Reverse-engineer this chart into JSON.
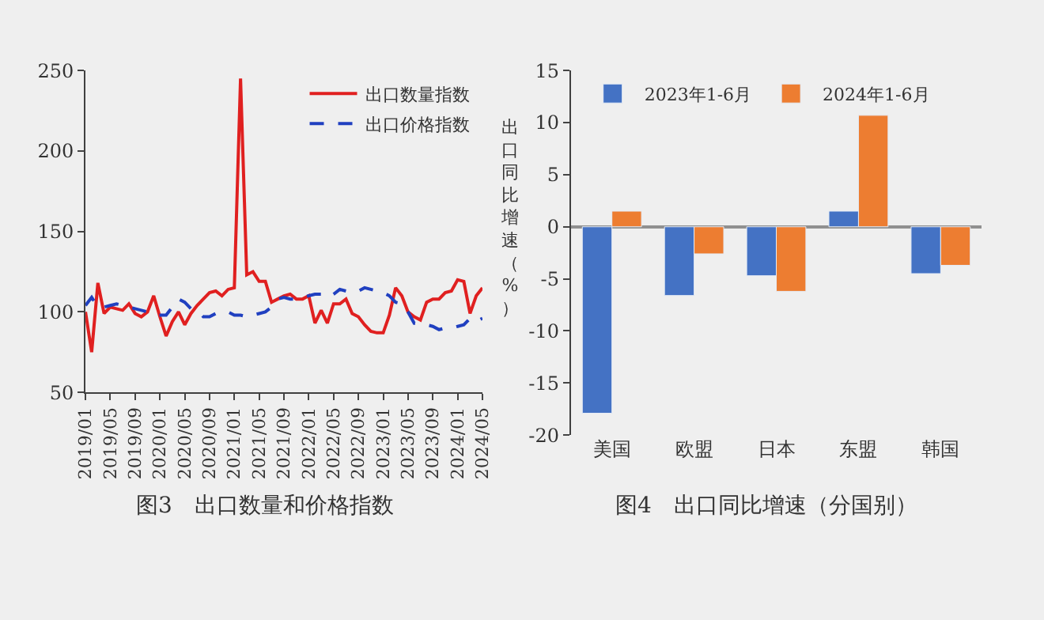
{
  "chart_data": [
    {
      "type": "line",
      "title": "图3　出口数量和价格指数",
      "categories": [
        "2019/01",
        null,
        null,
        null,
        "2019/05",
        null,
        null,
        null,
        "2019/09",
        null,
        null,
        null,
        "2020/01",
        null,
        null,
        null,
        "2020/05",
        null,
        null,
        null,
        "2020/09",
        null,
        null,
        null,
        "2021/01",
        null,
        null,
        null,
        "2021/05",
        null,
        null,
        null,
        "2021/09",
        null,
        null,
        null,
        "2022/01",
        null,
        null,
        null,
        "2022/05",
        null,
        null,
        null,
        "2022/09",
        null,
        null,
        null,
        "2023/01",
        null,
        null,
        null,
        "2023/05",
        null,
        null,
        null,
        "2023/09",
        null,
        null,
        null,
        "2024/01",
        null,
        null,
        null,
        "2024/05"
      ],
      "series": [
        {
          "name": "出口数量指数",
          "color": "#e02020",
          "line_style": "solid",
          "values": [
            100,
            75,
            118,
            99,
            103,
            102,
            101,
            105,
            99,
            97,
            100,
            110,
            97,
            85,
            94,
            100,
            92,
            99,
            104,
            108,
            112,
            113,
            110,
            114,
            115,
            245,
            123,
            125,
            119,
            119,
            106,
            108,
            110,
            111,
            108,
            108,
            110,
            93,
            101,
            93,
            105,
            105,
            108,
            99,
            97,
            92,
            88,
            87,
            87,
            98,
            115,
            110,
            100,
            97,
            95,
            106,
            108,
            108,
            112,
            113,
            120,
            119,
            99,
            110,
            115
          ]
        },
        {
          "name": "出口价格指数",
          "color": "#2040c0",
          "line_style": "dashed",
          "values": [
            104,
            109,
            103,
            103,
            104,
            105,
            104,
            103,
            102,
            101,
            100,
            98,
            98,
            98,
            103,
            108,
            106,
            102,
            101,
            97,
            97,
            99,
            100,
            100,
            98,
            98,
            97,
            98,
            99,
            100,
            103,
            108,
            109,
            108,
            108,
            109,
            110,
            111,
            111,
            109,
            111,
            114,
            113,
            112,
            113,
            115,
            114,
            113,
            112,
            110,
            106,
            105,
            100,
            93,
            93,
            92,
            91,
            89,
            90,
            90,
            91,
            92,
            96,
            94,
            96
          ]
        }
      ],
      "ylim": [
        50,
        250
      ],
      "yticks": [
        50,
        100,
        150,
        200,
        250
      ],
      "legend": "top right"
    },
    {
      "type": "bar",
      "title": "图4　出口同比增速（分国别）",
      "ylabel": "出口同比增速（%）",
      "categories": [
        "美国",
        "欧盟",
        "日本",
        "东盟",
        "韩国"
      ],
      "series": [
        {
          "name": "2023年1-6月",
          "color": "#4472c4",
          "values": [
            -17.9,
            -6.6,
            -4.7,
            1.5,
            -4.5
          ]
        },
        {
          "name": "2024年1-6月",
          "color": "#ed7d31",
          "values": [
            1.5,
            -2.6,
            -6.2,
            10.7,
            -3.7
          ]
        }
      ],
      "ylim": [
        -20,
        15
      ],
      "yticks": [
        -20,
        -15,
        -10,
        -5,
        0,
        5,
        10,
        15
      ],
      "legend": "top left"
    }
  ]
}
